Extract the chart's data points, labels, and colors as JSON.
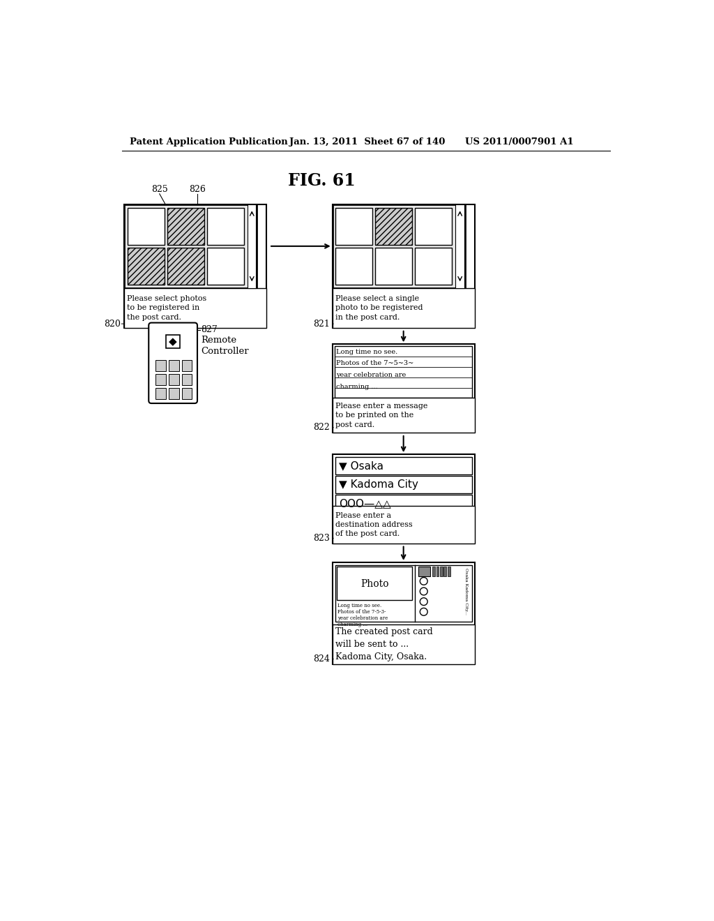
{
  "title": "FIG. 61",
  "header_left": "Patent Application Publication",
  "header_mid": "Jan. 13, 2011  Sheet 67 of 140",
  "header_right": "US 2011/0007901 A1",
  "bg_color": "#ffffff",
  "text_color": "#000000"
}
